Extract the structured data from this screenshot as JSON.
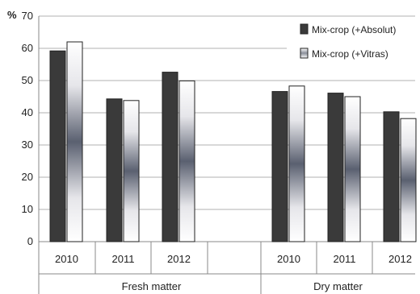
{
  "chart_data": {
    "type": "bar",
    "y_unit_label": "%",
    "ylim": [
      0,
      70
    ],
    "y_ticks": [
      0,
      10,
      20,
      30,
      40,
      50,
      60,
      70
    ],
    "grid": true,
    "legend_position": "top-right",
    "groups": [
      {
        "label": "Fresh matter",
        "categories": [
          "2010",
          "2011",
          "2012"
        ]
      },
      {
        "label": "Dry matter",
        "categories": [
          "2010",
          "2011",
          "2012"
        ]
      }
    ],
    "series": [
      {
        "name": "Mix-crop (+Absolut)",
        "color": "#3a3a3a",
        "values": [
          59.2,
          44.3,
          52.6,
          46.6,
          46.1,
          40.3
        ]
      },
      {
        "name": "Mix-crop (+Vitras)",
        "color": "#c8c8cc",
        "values": [
          62.0,
          43.8,
          49.9,
          48.3,
          45.0,
          38.2
        ]
      }
    ]
  }
}
